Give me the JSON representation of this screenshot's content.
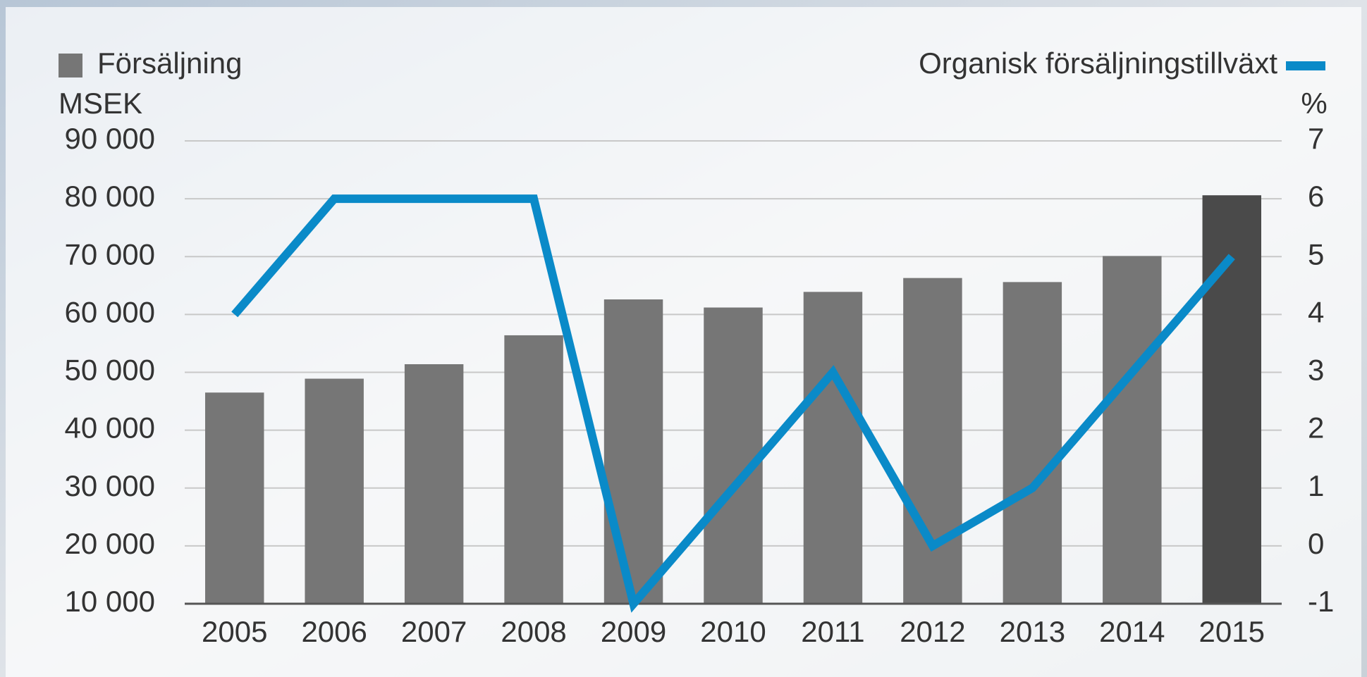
{
  "chart_data": {
    "type": "bar",
    "y_axis_label": "MSEK",
    "y2_axis_label": "%",
    "categories": [
      "2005",
      "2006",
      "2007",
      "2008",
      "2009",
      "2010",
      "2011",
      "2012",
      "2013",
      "2014",
      "2015"
    ],
    "series": [
      {
        "name": "Försäljning",
        "type": "bar",
        "color": "#767676",
        "colors": [
          "#767676",
          "#767676",
          "#767676",
          "#767676",
          "#767676",
          "#767676",
          "#767676",
          "#767676",
          "#767676",
          "#767676",
          "#4a4a4a"
        ],
        "values": [
          46500,
          48900,
          51400,
          56400,
          62600,
          61200,
          63900,
          66300,
          65600,
          70100,
          80600
        ]
      },
      {
        "name": "Organisk försäljningstillväxt",
        "type": "line",
        "axis": "y2",
        "color": "#0a8ac8",
        "values": [
          4,
          6,
          6,
          6,
          -1,
          1,
          3,
          0,
          1,
          3,
          5
        ]
      }
    ],
    "ylim": [
      10000,
      90000
    ],
    "yticks": [
      {
        "value": 10000,
        "label": "10 000"
      },
      {
        "value": 20000,
        "label": "20 000"
      },
      {
        "value": 30000,
        "label": "30 000"
      },
      {
        "value": 40000,
        "label": "40 000"
      },
      {
        "value": 50000,
        "label": "50 000"
      },
      {
        "value": 60000,
        "label": "60 000"
      },
      {
        "value": 70000,
        "label": "70 000"
      },
      {
        "value": 80000,
        "label": "80 000"
      },
      {
        "value": 90000,
        "label": "90 000"
      }
    ],
    "y2lim": [
      -1,
      7
    ],
    "y2ticks": [
      -1,
      0,
      1,
      2,
      3,
      4,
      5,
      6,
      7
    ],
    "grid": true
  }
}
